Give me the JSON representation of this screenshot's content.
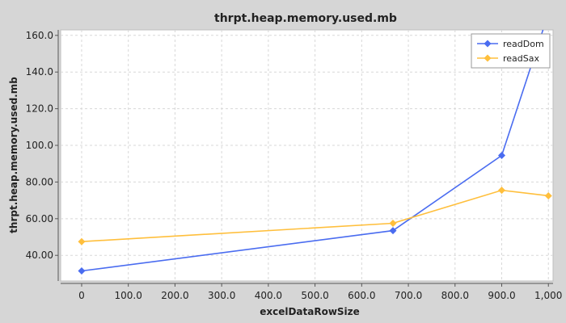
{
  "chart_data": {
    "type": "line",
    "title": "thrpt.heap.memory.used.mb",
    "xlabel": "excelDataRowSize",
    "ylabel": "thrpt.heap.memory.used.mb",
    "xlim": [
      -45,
      1010
    ],
    "ylim": [
      26,
      163
    ],
    "x_ticks": [
      0,
      100,
      200,
      300,
      400,
      500,
      600,
      700,
      800,
      900,
      1000
    ],
    "x_tick_labels": [
      "0",
      "100.0",
      "200.0",
      "300.0",
      "400.0",
      "500.0",
      "600.0",
      "700.0",
      "800.0",
      "900.0",
      "1,000"
    ],
    "y_ticks": [
      40,
      60,
      80,
      100,
      120,
      140,
      160
    ],
    "y_tick_labels": [
      "40.00",
      "60.00",
      "80.00",
      "100.0",
      "120.0",
      "140.0",
      "160.0"
    ],
    "grid": true,
    "legend_position": "top-right",
    "series": [
      {
        "name": "readDom",
        "color": "#4a6cf0",
        "x": [
          0,
          667,
          900,
          1000
        ],
        "y": [
          31.5,
          53.5,
          94.5,
          172
        ]
      },
      {
        "name": "readSax",
        "color": "#ffbf3c",
        "x": [
          0,
          667,
          900,
          1000
        ],
        "y": [
          47.5,
          57.5,
          75.5,
          72.5
        ]
      }
    ]
  }
}
